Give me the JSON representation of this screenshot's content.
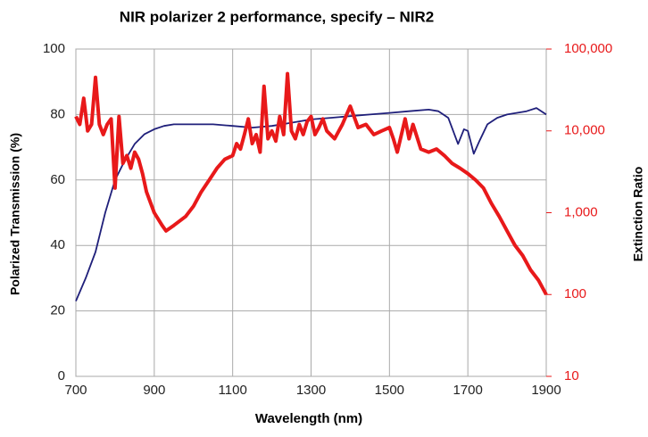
{
  "chart_data": {
    "type": "line",
    "title": "NIR polarizer 2 performance, specify – NIR2",
    "xlabel": "Wavelength (nm)",
    "ylabel": "Polarized Transmission (%)",
    "y2label": "Extinction Ratio",
    "xlim": [
      700,
      1900
    ],
    "xticks": [
      700,
      900,
      1100,
      1300,
      1500,
      1700,
      1900
    ],
    "ylim": [
      0,
      100
    ],
    "yticks": [
      0,
      20,
      40,
      60,
      80,
      100
    ],
    "y2lim": [
      10,
      100000
    ],
    "y2ticks": [
      10,
      {
        "value": 100,
        "label": "100"
      },
      {
        "value": 1000,
        "label": "1,000"
      },
      {
        "value": 10000,
        "label": "10,000"
      },
      {
        "value": 100000,
        "label": "100,000"
      }
    ],
    "y2log": true,
    "grid": true,
    "series": [
      {
        "color": "#1f1f7a",
        "x": [
          700,
          725,
          750,
          775,
          800,
          825,
          850,
          875,
          900,
          925,
          950,
          1000,
          1050,
          1100,
          1150,
          1200,
          1250,
          1300,
          1350,
          1400,
          1450,
          1500,
          1550,
          1600,
          1625,
          1650,
          1675,
          1690,
          1700,
          1715,
          1730,
          1750,
          1775,
          1800,
          1850,
          1875,
          1900
        ],
        "values": [
          23,
          30,
          38,
          50,
          60,
          66,
          71,
          74,
          75.5,
          76.5,
          77,
          77,
          77,
          76.5,
          76,
          76.5,
          77.5,
          78.5,
          79,
          79.5,
          80,
          80.5,
          81,
          81.5,
          81,
          79,
          71,
          75.5,
          75,
          68,
          72,
          77,
          79,
          80,
          81,
          82,
          80
        ]
      },
      {
        "color": "#e8191a",
        "axis": "y2",
        "x": [
          700,
          710,
          720,
          730,
          740,
          750,
          760,
          770,
          780,
          790,
          800,
          810,
          820,
          830,
          840,
          850,
          860,
          870,
          880,
          900,
          920,
          930,
          950,
          980,
          1000,
          1020,
          1040,
          1060,
          1080,
          1100,
          1110,
          1120,
          1130,
          1140,
          1150,
          1160,
          1170,
          1180,
          1190,
          1200,
          1210,
          1220,
          1230,
          1240,
          1250,
          1260,
          1270,
          1280,
          1290,
          1300,
          1310,
          1320,
          1330,
          1340,
          1360,
          1380,
          1400,
          1420,
          1440,
          1460,
          1480,
          1500,
          1510,
          1520,
          1540,
          1550,
          1560,
          1580,
          1600,
          1620,
          1640,
          1660,
          1680,
          1700,
          1720,
          1740,
          1760,
          1780,
          1800,
          1820,
          1840,
          1860,
          1880,
          1900
        ],
        "values": [
          15000,
          12000,
          25000,
          10000,
          12000,
          45000,
          12000,
          9000,
          12000,
          14000,
          2000,
          15000,
          4000,
          5000,
          3500,
          5500,
          4500,
          3000,
          1800,
          1000,
          700,
          600,
          700,
          900,
          1200,
          1800,
          2500,
          3500,
          4500,
          5000,
          7000,
          6000,
          9000,
          14000,
          7000,
          9000,
          5500,
          35000,
          8000,
          10000,
          7500,
          15000,
          9000,
          50000,
          10000,
          8000,
          12000,
          9000,
          13000,
          15000,
          9000,
          11000,
          14000,
          10000,
          8000,
          12000,
          20000,
          11000,
          12000,
          9000,
          10000,
          11000,
          8000,
          5500,
          14000,
          8000,
          12000,
          6000,
          5500,
          6000,
          5000,
          4000,
          3500,
          3000,
          2500,
          2000,
          1300,
          900,
          600,
          400,
          300,
          200,
          150,
          100
        ]
      }
    ]
  }
}
